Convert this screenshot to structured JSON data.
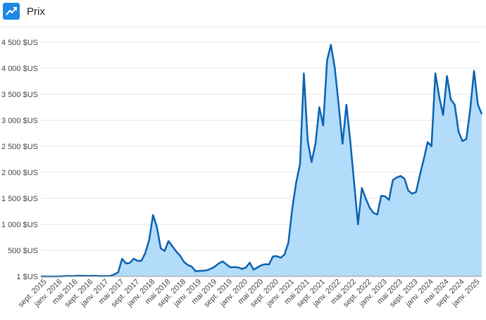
{
  "header": {
    "title": "Prix"
  },
  "chart_data": {
    "type": "area",
    "categories": [
      null,
      "sept. 2015",
      null,
      null,
      null,
      "janv. 2016",
      null,
      null,
      null,
      "mai 2016",
      null,
      null,
      null,
      "sept. 2016",
      null,
      null,
      null,
      "janv. 2017",
      null,
      null,
      null,
      "mai 2017",
      null,
      null,
      null,
      "sept. 2017",
      null,
      null,
      null,
      "janv. 2018",
      null,
      null,
      null,
      "mai 2018",
      null,
      null,
      null,
      "sept. 2018",
      null,
      null,
      null,
      "janv. 2019",
      null,
      null,
      null,
      "mai 2019",
      null,
      null,
      null,
      "sept. 2019",
      null,
      null,
      null,
      "janv. 2020",
      null,
      null,
      null,
      "mai 2020",
      null,
      null,
      null,
      "sept. 2020",
      null,
      null,
      null,
      "janv. 2021",
      null,
      null,
      null,
      "mai 2021",
      null,
      null,
      null,
      "sept. 2021",
      null,
      null,
      null,
      "janv. 2022",
      null,
      null,
      null,
      "mai 2022",
      null,
      null,
      null,
      "sept. 2022",
      null,
      null,
      null,
      "janv. 2023",
      null,
      null,
      null,
      "mai 2023",
      null,
      null,
      null,
      "sept. 2023",
      null,
      null,
      null,
      "janv. 2024",
      null,
      null,
      null,
      "mai 2024",
      null,
      null,
      null,
      "sept. 2024",
      null,
      null,
      null,
      "janv. 2025",
      null
    ],
    "values": [
      1,
      1,
      1,
      1,
      1,
      2,
      6,
      11,
      8,
      12,
      14,
      12,
      11,
      12,
      12,
      10,
      8,
      10,
      12,
      40,
      80,
      340,
      250,
      260,
      340,
      300,
      300,
      450,
      700,
      1180,
      950,
      540,
      490,
      680,
      580,
      480,
      400,
      280,
      220,
      190,
      100,
      105,
      110,
      120,
      150,
      190,
      250,
      290,
      230,
      175,
      180,
      175,
      145,
      170,
      265,
      130,
      175,
      215,
      235,
      230,
      385,
      390,
      360,
      420,
      650,
      1300,
      1800,
      2150,
      3900,
      2600,
      2200,
      2550,
      3250,
      2900,
      4150,
      4450,
      4000,
      3300,
      2550,
      3300,
      2600,
      1800,
      1000,
      1700,
      1500,
      1320,
      1220,
      1190,
      1550,
      1540,
      1470,
      1850,
      1900,
      1930,
      1880,
      1650,
      1590,
      1620,
      1950,
      2250,
      2580,
      2500,
      3900,
      3450,
      3100,
      3850,
      3400,
      3300,
      2780,
      2600,
      2640,
      3200,
      3950,
      3300,
      3120
    ],
    "color": "#0b62b0",
    "fill": "#b3dcfb",
    "ylim": [
      1,
      4500
    ],
    "yticks": [
      {
        "value": 1,
        "label": "1 $US"
      },
      {
        "value": 500,
        "label": "500 $US"
      },
      {
        "value": 1000,
        "label": "1 000 $US"
      },
      {
        "value": 1500,
        "label": "1 500 $US"
      },
      {
        "value": 2000,
        "label": "2 000 $US"
      },
      {
        "value": 2500,
        "label": "2 500 $US"
      },
      {
        "value": 3000,
        "label": "3 000 $US"
      },
      {
        "value": 3500,
        "label": "3 500 $US"
      },
      {
        "value": 4000,
        "label": "4 000 $US"
      },
      {
        "value": 4500,
        "label": "4 500 $US"
      }
    ],
    "grid": true
  }
}
